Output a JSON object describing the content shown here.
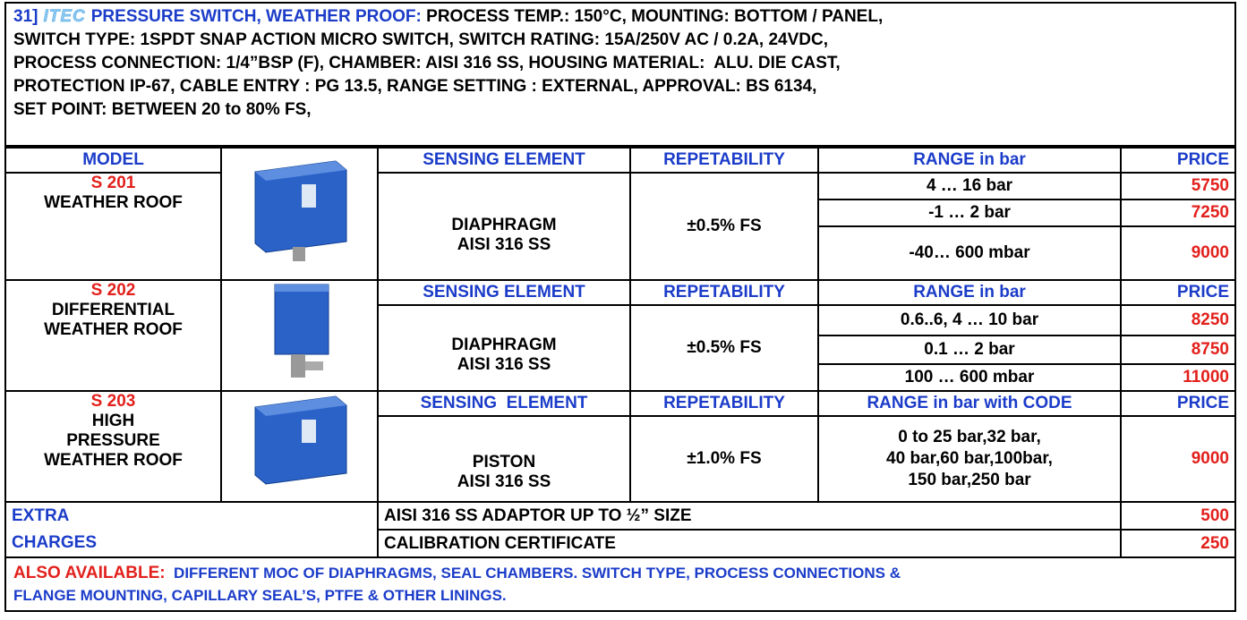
{
  "header": {
    "number": "31]",
    "logo": "ITEC",
    "title": "PRESSURE SWITCH, WEATHER PROOF:",
    "description_lines": [
      "PROCESS TEMP.: 150°C, MOUNTING: BOTTOM / PANEL,",
      "SWITCH TYPE: 1SPDT SNAP ACTION MICRO SWITCH, SWITCH RATING: 15A/250V AC / 0.2A, 24VDC,",
      "PROCESS CONNECTION: 1/4”BSP (F), CHAMBER: AISI 316 SS, HOUSING MATERIAL:  ALU. DIE CAST,",
      "PROTECTION IP-67, CABLE ENTRY : PG 13.5, RANGE SETTING : EXTERNAL, APPROVAL: BS 6134,",
      "SET POINT: BETWEEN 20 to 80% FS,"
    ]
  },
  "table": {
    "column_headers": [
      "MODEL",
      "SENSING ELEMENT",
      "REPETABILITY",
      "RANGE in bar",
      "PRICE"
    ],
    "models": [
      {
        "code": "S 201",
        "name_lines": [
          "WEATHER ROOF"
        ],
        "sensing_element": [
          "DIAPHRAGM",
          "AISI 316 SS"
        ],
        "repeatability": "±0.5% FS",
        "ranges": [
          "4 … 16 bar",
          "-1 … 2 bar",
          "-40… 600 mbar"
        ],
        "prices": [
          5750,
          7250,
          9000
        ]
      },
      {
        "code": "S 202",
        "name_lines": [
          "DIFFERENTIAL",
          "WEATHER ROOF"
        ],
        "headers": [
          "SENSING ELEMENT",
          "REPETABILITY",
          "RANGE in bar",
          "PRICE"
        ],
        "sensing_element": [
          "DIAPHRAGM",
          "AISI 316 SS"
        ],
        "repeatability": "±0.5% FS",
        "ranges": [
          "0.6..6, 4 … 10 bar",
          "0.1 … 2 bar",
          "100 … 600 mbar"
        ],
        "prices": [
          8250,
          8750,
          11000
        ]
      },
      {
        "code": "S 203",
        "name_lines": [
          "HIGH",
          "PRESSURE",
          "WEATHER ROOF"
        ],
        "headers": [
          "SENSING  ELEMENT",
          "REPETABILITY",
          "RANGE in bar with CODE",
          "PRICE"
        ],
        "sensing_element": [
          "PISTON",
          "AISI 316 SS"
        ],
        "repeatability": "±1.0% FS",
        "range_lines": [
          "0 to 25 bar,32 bar,",
          "40 bar,60 bar,100bar,",
          "150 bar,250 bar"
        ],
        "price": 9000
      }
    ],
    "extra_charges": {
      "label_lines": [
        "EXTRA",
        "CHARGES"
      ],
      "items": [
        {
          "description": "AISI 316 SS ADAPTOR UP TO ½” SIZE",
          "price": 500
        },
        {
          "description": "CALIBRATION CERTIFICATE",
          "price": 250
        }
      ]
    }
  },
  "footer": {
    "label": "ALSO AVAILABLE:",
    "lines": [
      "DIFFERENT MOC OF DIAPHRAGMS, SEAL CHAMBERS. SWITCH TYPE, PROCESS CONNECTIONS &",
      "FLANGE MOUNTING, CAPILLARY SEAL’S, PTFE & OTHER LININGS."
    ]
  }
}
